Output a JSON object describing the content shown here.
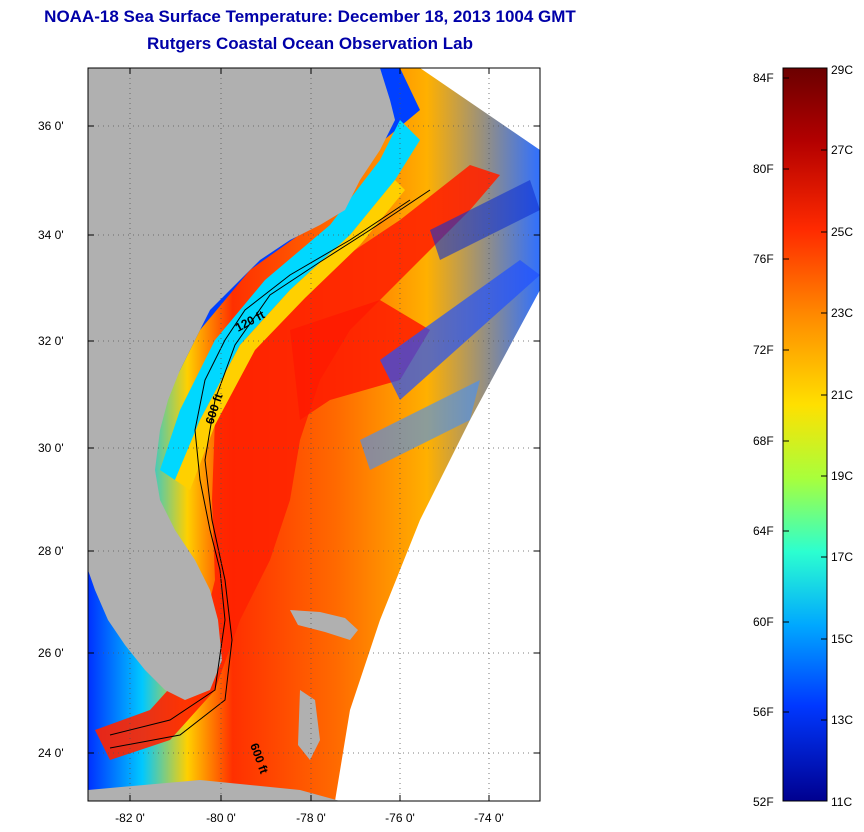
{
  "title": "NOAA-18 Sea Surface Temperature:  December 18, 2013 1004 GMT",
  "subtitle": "Rutgers Coastal Ocean Observation Lab",
  "map": {
    "lat_ticks": [
      "36 0'",
      "34 0'",
      "32 0'",
      "30 0'",
      "28 0'",
      "26 0'",
      "24 0'"
    ],
    "lon_ticks": [
      "-82 0'",
      "-80 0'",
      "-78 0'",
      "-76 0'",
      "-74 0'"
    ],
    "contour_labels": [
      "120 ft",
      "600 ft",
      "600 ft"
    ],
    "land_color": "#b0b0b0",
    "water_color": "#ffffff"
  },
  "colorbar": {
    "fahrenheit_labels": [
      "84F",
      "80F",
      "76F",
      "72F",
      "68F",
      "64F",
      "60F",
      "56F",
      "52F"
    ],
    "celsius_labels": [
      "29C",
      "27C",
      "25C",
      "23C",
      "21C",
      "19C",
      "17C",
      "15C",
      "13C",
      "11C"
    ],
    "colors": [
      "#6b0000",
      "#b30000",
      "#ff2a00",
      "#ff8c00",
      "#ffe000",
      "#a8ff3c",
      "#2cffd0",
      "#00a8ff",
      "#0038ff",
      "#00008f"
    ]
  }
}
